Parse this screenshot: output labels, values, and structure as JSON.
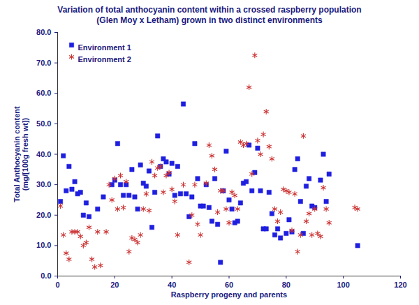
{
  "chart_data": {
    "type": "scatter",
    "title": "Variation of total anthocyanin content within a crossed raspberry population\n(Glen Moy x Letham) grown in two distinct environments",
    "x_label": "Raspberry progeny and parents",
    "y_label": "Total Anthocyanin content\n(mg/[100g fresh wt])",
    "xlim": [
      0,
      120
    ],
    "xticks": [
      0,
      20,
      40,
      60,
      80,
      100,
      120
    ],
    "ylim": [
      0,
      80
    ],
    "yticks": [
      {
        "value": 0,
        "label": "0.0"
      },
      {
        "value": 10,
        "label": "10.0"
      },
      {
        "value": 20,
        "label": "20.0"
      },
      {
        "value": 30,
        "label": "30.0"
      },
      {
        "value": 40,
        "label": "40.0"
      },
      {
        "value": 50,
        "label": "50.0"
      },
      {
        "value": 60,
        "label": "60.0"
      },
      {
        "value": 70,
        "label": "70.0"
      },
      {
        "value": 80,
        "label": "80.0"
      }
    ],
    "grid": false,
    "legend": "top-left",
    "series": [
      {
        "name": "Environment 1",
        "color": "#1f1fe0",
        "marker": "square",
        "x": [
          1,
          2,
          3,
          4,
          5,
          6,
          7,
          8,
          9,
          10,
          11,
          14,
          16,
          19,
          20,
          21,
          22,
          23,
          24,
          25,
          26,
          27,
          28,
          29,
          30,
          31,
          32,
          33,
          34,
          35,
          36,
          37,
          38,
          39,
          40,
          41,
          42,
          43,
          44,
          45,
          46,
          47,
          48,
          49,
          50,
          51,
          52,
          53,
          54,
          55,
          56,
          57,
          58,
          59,
          60,
          61,
          62,
          63,
          64,
          65,
          66,
          67,
          68,
          69,
          70,
          71,
          72,
          73,
          74,
          75,
          76,
          77,
          78,
          80,
          81,
          82,
          83,
          84,
          85,
          86,
          87,
          88,
          89,
          90,
          92,
          93,
          94,
          95,
          105
        ],
        "values": [
          24.5,
          39.5,
          28,
          36,
          28.5,
          31,
          27,
          27.5,
          20,
          24,
          19.5,
          22,
          26,
          30,
          31.5,
          43.5,
          30,
          26.5,
          30,
          26.5,
          35,
          26,
          22,
          36.5,
          30.5,
          29.5,
          34.5,
          16,
          27.5,
          46,
          36,
          38.5,
          37.5,
          33.5,
          37,
          26.5,
          36,
          27,
          56.5,
          27,
          19.5,
          26,
          43.5,
          32,
          23,
          23,
          30,
          22.5,
          18,
          32,
          17,
          4.5,
          28,
          41,
          25,
          22,
          17.5,
          18,
          24,
          30.5,
          31,
          43,
          28,
          34,
          42,
          28,
          15.5,
          15.5,
          27.5,
          20.5,
          13.5,
          15.5,
          12.5,
          14,
          18.5,
          14.5,
          35,
          38.5,
          24.5,
          14,
          29.5,
          32,
          23,
          22.5,
          31.5,
          40,
          24.5,
          33.5,
          10
        ]
      },
      {
        "name": "Environment 2",
        "color": "#cc3333",
        "marker": "asterisk",
        "x": [
          1,
          2,
          3,
          4,
          5,
          6,
          7,
          8,
          9,
          10,
          11,
          12,
          13,
          14,
          15,
          17,
          18,
          19,
          20,
          21,
          22,
          23,
          24,
          25,
          26,
          27,
          28,
          29,
          30,
          31,
          32,
          33,
          34,
          35,
          36,
          37,
          38,
          39,
          40,
          41,
          42,
          44,
          46,
          47,
          48,
          49,
          50,
          52,
          53,
          54,
          55,
          56,
          57,
          58,
          59,
          60,
          61,
          62,
          63,
          64,
          65,
          66,
          67,
          68,
          69,
          70,
          71,
          72,
          73,
          74,
          75,
          76,
          77,
          78,
          79,
          80,
          81,
          82,
          83,
          84,
          85,
          86,
          87,
          88,
          89,
          90,
          91,
          92,
          93,
          94,
          95,
          104,
          105
        ],
        "values": [
          23,
          13.5,
          7.5,
          5.5,
          14.5,
          14.5,
          14.5,
          13,
          10,
          11,
          16,
          5.5,
          3,
          14.5,
          3.5,
          14.5,
          30,
          25,
          32,
          22,
          33,
          22.5,
          31,
          8,
          12.5,
          12,
          11,
          13.5,
          22,
          27,
          21.5,
          37.5,
          33,
          35.5,
          36,
          27.5,
          33,
          34,
          28.5,
          24.5,
          13.5,
          30,
          4.5,
          20,
          30,
          17,
          13.5,
          30.5,
          43,
          39.5,
          35,
          21,
          28,
          28,
          22,
          17.5,
          27.5,
          26.5,
          22,
          44,
          43,
          43.5,
          62,
          33.5,
          72.5,
          44.5,
          40,
          46.5,
          54,
          42.5,
          38.5,
          22,
          18,
          21,
          28.5,
          28,
          27.5,
          15,
          27,
          8,
          13.5,
          46,
          18,
          20.5,
          13.5,
          22,
          14,
          13,
          29,
          22,
          17.5,
          22.5,
          22
        ]
      }
    ]
  }
}
